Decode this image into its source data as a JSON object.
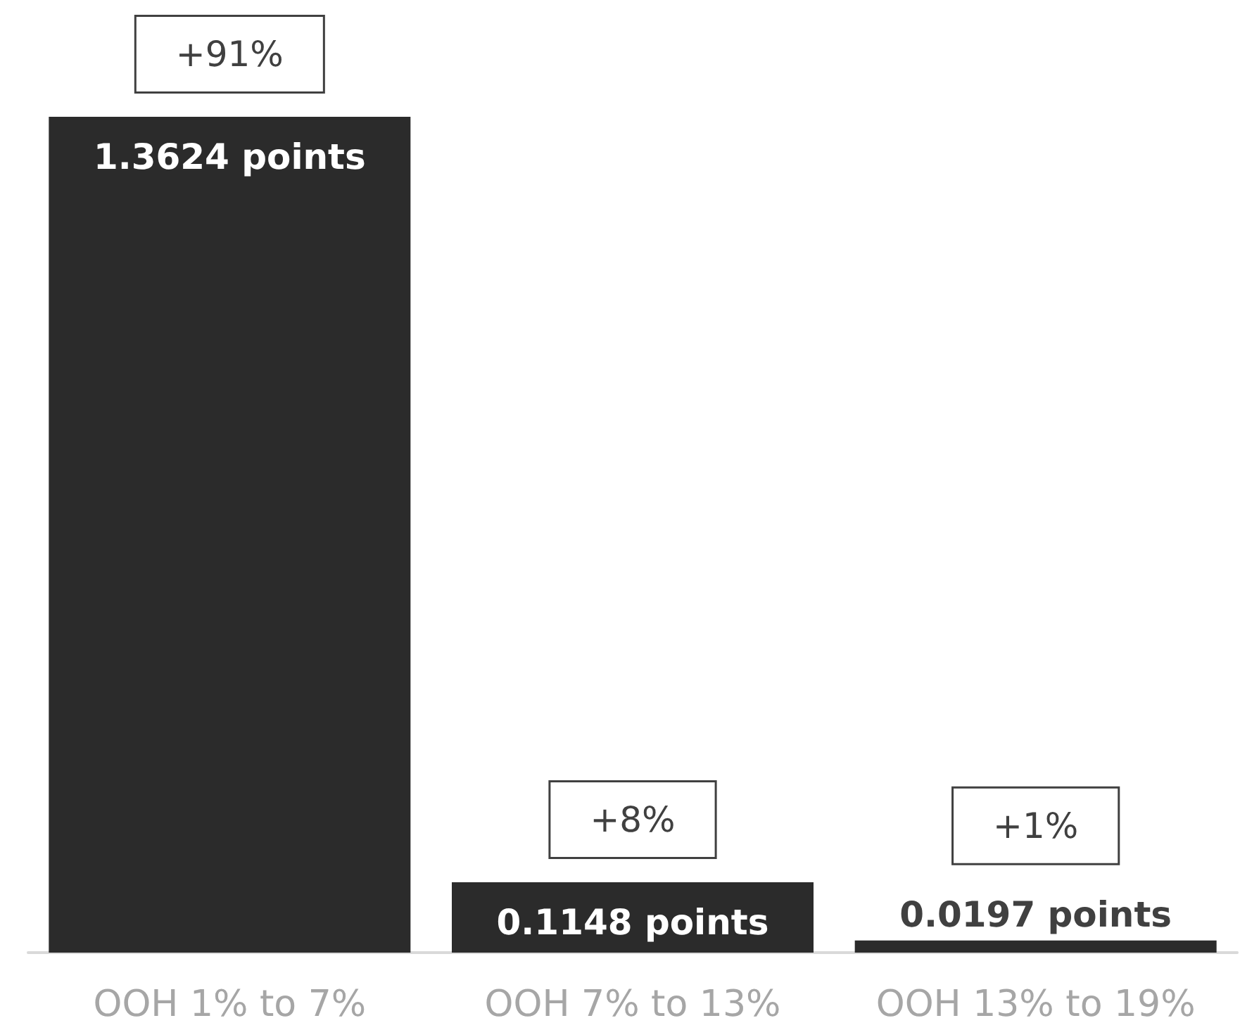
{
  "chart_data": {
    "type": "bar",
    "categories": [
      "OOH 1% to 7%",
      "OOH 7% to 13%",
      "OOH 13% to 19%"
    ],
    "values": [
      1.3624,
      0.1148,
      0.0197
    ],
    "value_labels": [
      "1.3624 points",
      "0.1148 points",
      "0.0197 points"
    ],
    "color": "#2b2b2b",
    "annotations": [
      {
        "text": "+91%",
        "x": "OOH 1% to 7%",
        "y": 1.3624
      },
      {
        "text": "+8%",
        "x": "OOH 7% to 13%",
        "y": 0.1148
      },
      {
        "text": "+1%",
        "x": "OOH 13% to 19%",
        "y": 0.0197
      }
    ],
    "orientation": "vertical"
  }
}
